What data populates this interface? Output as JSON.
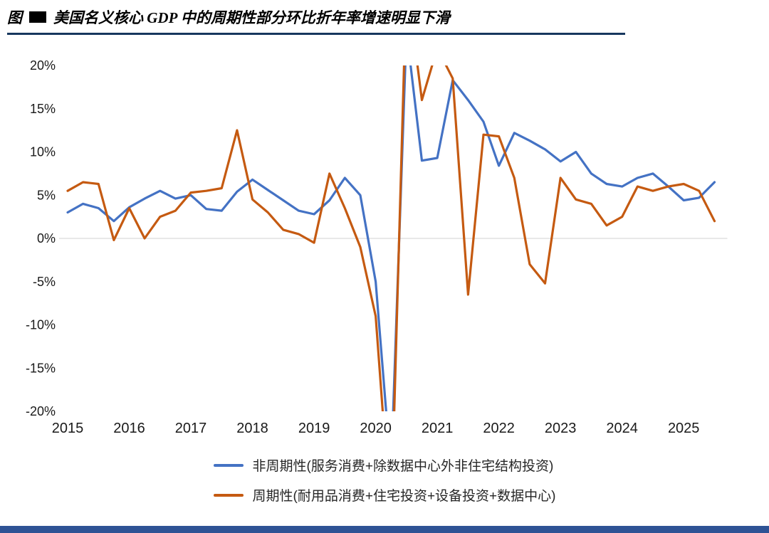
{
  "header": {
    "prefix": "图",
    "title": "美国名义核心 GDP 中的周期性部分环比折年率增速明显下滑"
  },
  "colors": {
    "divider": "#17375E",
    "footer_bar": "#2E5395",
    "zero_line": "#D9D9D9",
    "tick_text": "#1A1A1A"
  },
  "chart_data": {
    "type": "line",
    "title": "美国名义核心 GDP 中的周期性部分环比折年率增速明显下滑",
    "xlabel": "",
    "ylabel": "",
    "ylim": [
      -20,
      20
    ],
    "grid": false,
    "legend_position": "bottom",
    "y_ticks": [
      "20%",
      "15%",
      "10%",
      "5%",
      "0%",
      "-5%",
      "-10%",
      "-15%",
      "-20%"
    ],
    "x_ticks": [
      "2015",
      "2016",
      "2017",
      "2018",
      "2019",
      "2020",
      "2021",
      "2022",
      "2023",
      "2024",
      "2025"
    ],
    "categories": [
      "2015Q1",
      "2015Q2",
      "2015Q3",
      "2015Q4",
      "2016Q1",
      "2016Q2",
      "2016Q3",
      "2016Q4",
      "2017Q1",
      "2017Q2",
      "2017Q3",
      "2017Q4",
      "2018Q1",
      "2018Q2",
      "2018Q3",
      "2018Q4",
      "2019Q1",
      "2019Q2",
      "2019Q3",
      "2019Q4",
      "2020Q1",
      "2020Q2",
      "2020Q3",
      "2020Q4",
      "2021Q1",
      "2021Q2",
      "2021Q3",
      "2021Q4",
      "2022Q1",
      "2022Q2",
      "2022Q3",
      "2022Q4",
      "2023Q1",
      "2023Q2",
      "2023Q3",
      "2023Q4",
      "2024Q1",
      "2024Q2",
      "2024Q3",
      "2024Q4",
      "2025Q1",
      "2025Q2",
      "2025Q3"
    ],
    "series": [
      {
        "name": "非周期性(服务消费+除数据中心外非住宅结构投资)",
        "color": "#4472C4",
        "values": [
          3.0,
          4.0,
          3.5,
          2.0,
          3.6,
          4.6,
          5.5,
          4.6,
          5.0,
          3.4,
          3.2,
          5.4,
          6.8,
          5.6,
          4.4,
          3.2,
          2.8,
          4.4,
          7.0,
          5.0,
          -5.0,
          -27.0,
          24.0,
          9.0,
          9.3,
          18.3,
          16.0,
          13.5,
          8.4,
          12.2,
          11.3,
          10.3,
          8.9,
          10.0,
          7.5,
          6.3,
          6.0,
          7.0,
          7.5,
          6.0,
          4.4,
          4.7,
          6.5
        ]
      },
      {
        "name": "周期性(耐用品消费+住宅投资+设备投资+数据中心)",
        "color": "#C55A11",
        "values": [
          5.5,
          6.5,
          6.3,
          -0.2,
          3.5,
          0.0,
          2.5,
          3.2,
          5.3,
          5.5,
          5.8,
          12.5,
          4.5,
          3.0,
          1.0,
          0.5,
          -0.5,
          7.5,
          3.5,
          -1.0,
          -9.0,
          -33.0,
          30.0,
          16.0,
          22.0,
          18.5,
          -6.5,
          12.0,
          11.8,
          7.0,
          -3.0,
          -5.2,
          7.0,
          4.5,
          4.0,
          1.5,
          2.5,
          6.0,
          5.5,
          6.0,
          6.3,
          5.5,
          2.0
        ]
      }
    ]
  }
}
